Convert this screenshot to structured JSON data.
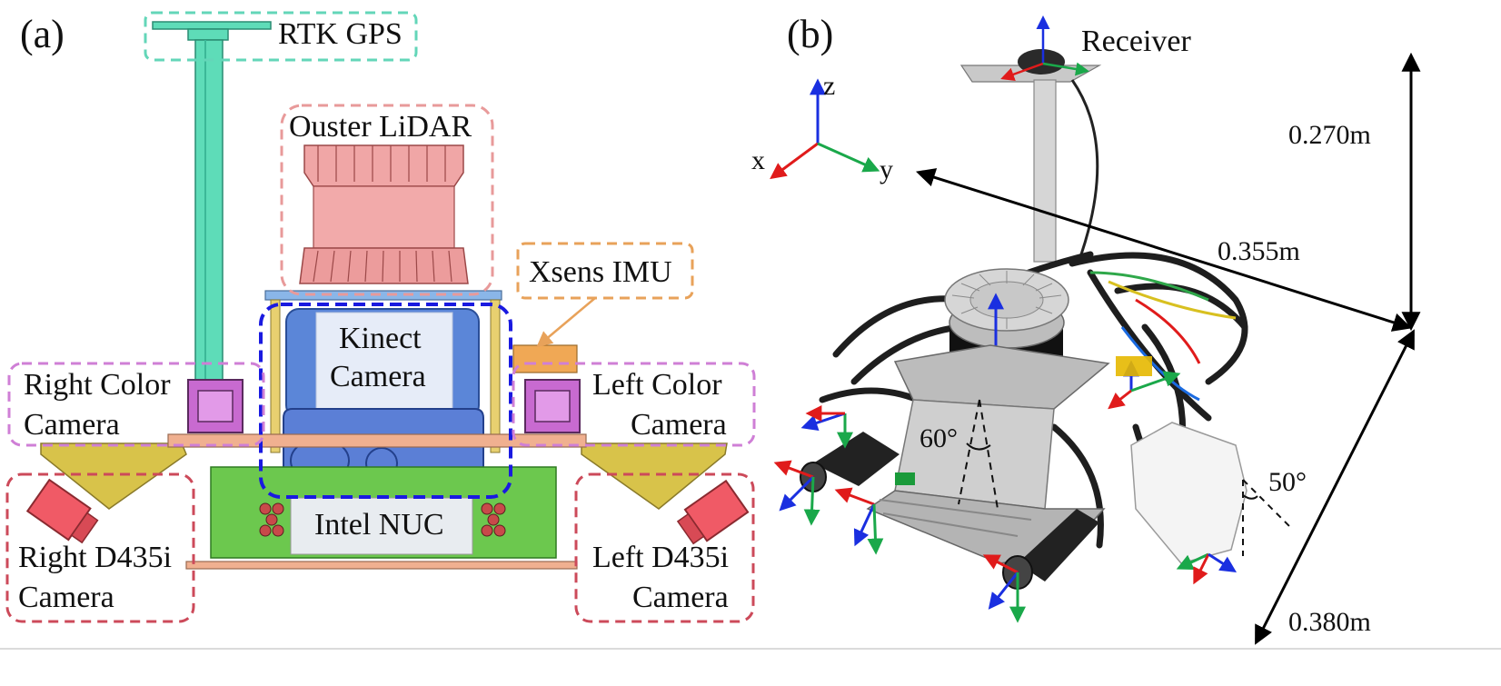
{
  "panel_a": {
    "panel_label": "(a)",
    "components": {
      "rtk_gps": "RTK GPS",
      "ouster_lidar": "Ouster LiDAR",
      "xsens_imu": "Xsens IMU",
      "kinect_line1": "Kinect",
      "kinect_line2": "Camera",
      "right_color_line1": "Right Color",
      "right_color_line2": "Camera",
      "left_color_line1": "Left Color",
      "left_color_line2": "Camera",
      "right_d435i_line1": "Right D435i",
      "right_d435i_line2": "Camera",
      "left_d435i_line1": "Left D435i",
      "left_d435i_line2": "Camera",
      "intel_nuc": "Intel NUC"
    },
    "colors": {
      "gps_box": "#63d6b8",
      "lidar_box": "#e89a9a",
      "imu_box": "#e8a25a",
      "kinect_box": "#1a1ae0",
      "color_camera_box": "#cf7fd6",
      "d435i_box": "#cc4a5a"
    }
  },
  "panel_b": {
    "panel_label": "(b)",
    "receiver": "Receiver",
    "axes": {
      "x": "x",
      "y": "y",
      "z": "z"
    },
    "dimensions": {
      "height": "0.270m",
      "width": "0.355m",
      "depth": "0.380m"
    },
    "angles": {
      "kinect_tilt": "60°",
      "side_tilt": "50°"
    },
    "axis_colors": {
      "x": "#e01b1b",
      "y": "#1aa84a",
      "z": "#1a2fe0"
    }
  }
}
